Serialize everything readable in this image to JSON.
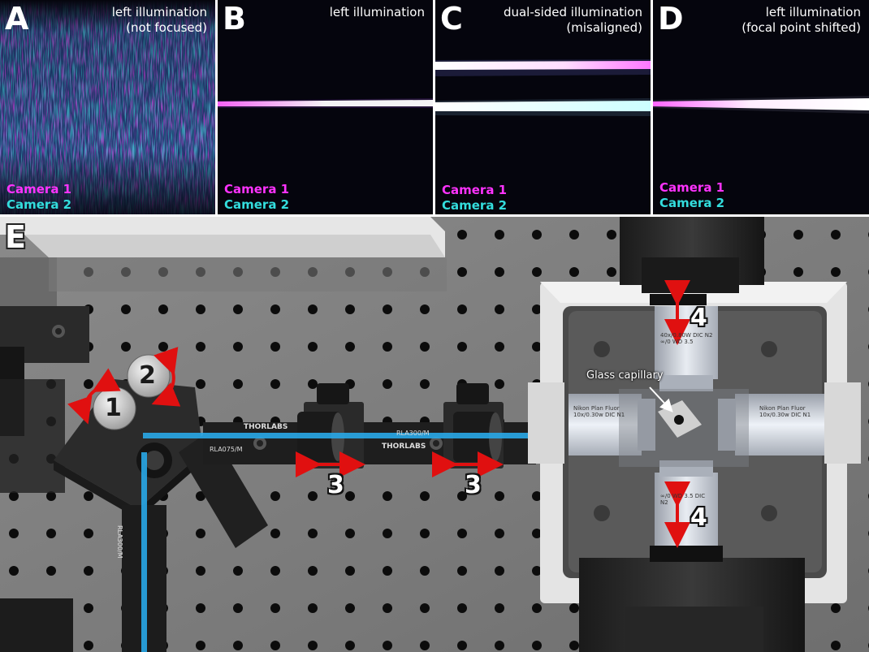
{
  "panels": [
    {
      "letter": "A",
      "title_line1": "left illumination",
      "title_line2": "(not focused)",
      "camera1": "Camera 1",
      "camera2": "Camera 2"
    },
    {
      "letter": "B",
      "title_line1": "left illumination",
      "title_line2": "",
      "camera1": "Camera 1",
      "camera2": "Camera 2"
    },
    {
      "letter": "C",
      "title_line1": "dual-sided illumination",
      "title_line2": "(misaligned)",
      "camera1": "Camera 1",
      "camera2": "Camera 2"
    },
    {
      "letter": "D",
      "title_line1": "left illumination",
      "title_line2": "(focal point shifted)",
      "camera1": "Camera 1",
      "camera2": "Camera 2"
    }
  ],
  "panel_e": {
    "letter": "E",
    "callout_1": "1",
    "callout_2": "2",
    "callout_3a": "3",
    "callout_3b": "3",
    "callout_4a": "4",
    "callout_4b": "4",
    "capillary_label": "Glass capillary",
    "rail_brand_1": "THORLABS",
    "rail_brand_2": "THORLABS",
    "rail_model_1": "RLA075/M",
    "rail_model_2": "RLA300/M",
    "rail_model_3": "RLA300/M",
    "objective_left": "Nikon Plan Fluor 10x/0.30w DIC N1",
    "objective_right": "Nikon Plan Fluor 10x/0.30w DIC N1",
    "objective_top": "40x/0.80W DIC N2 ∞/0 WD 3.5",
    "objective_bottom": "∞/0 WD 3.5 DIC N2",
    "colors": {
      "camera1": "#ff33ff",
      "camera2": "#33dddd",
      "beam": "#29a8e8",
      "arrow": "#e01010"
    }
  }
}
